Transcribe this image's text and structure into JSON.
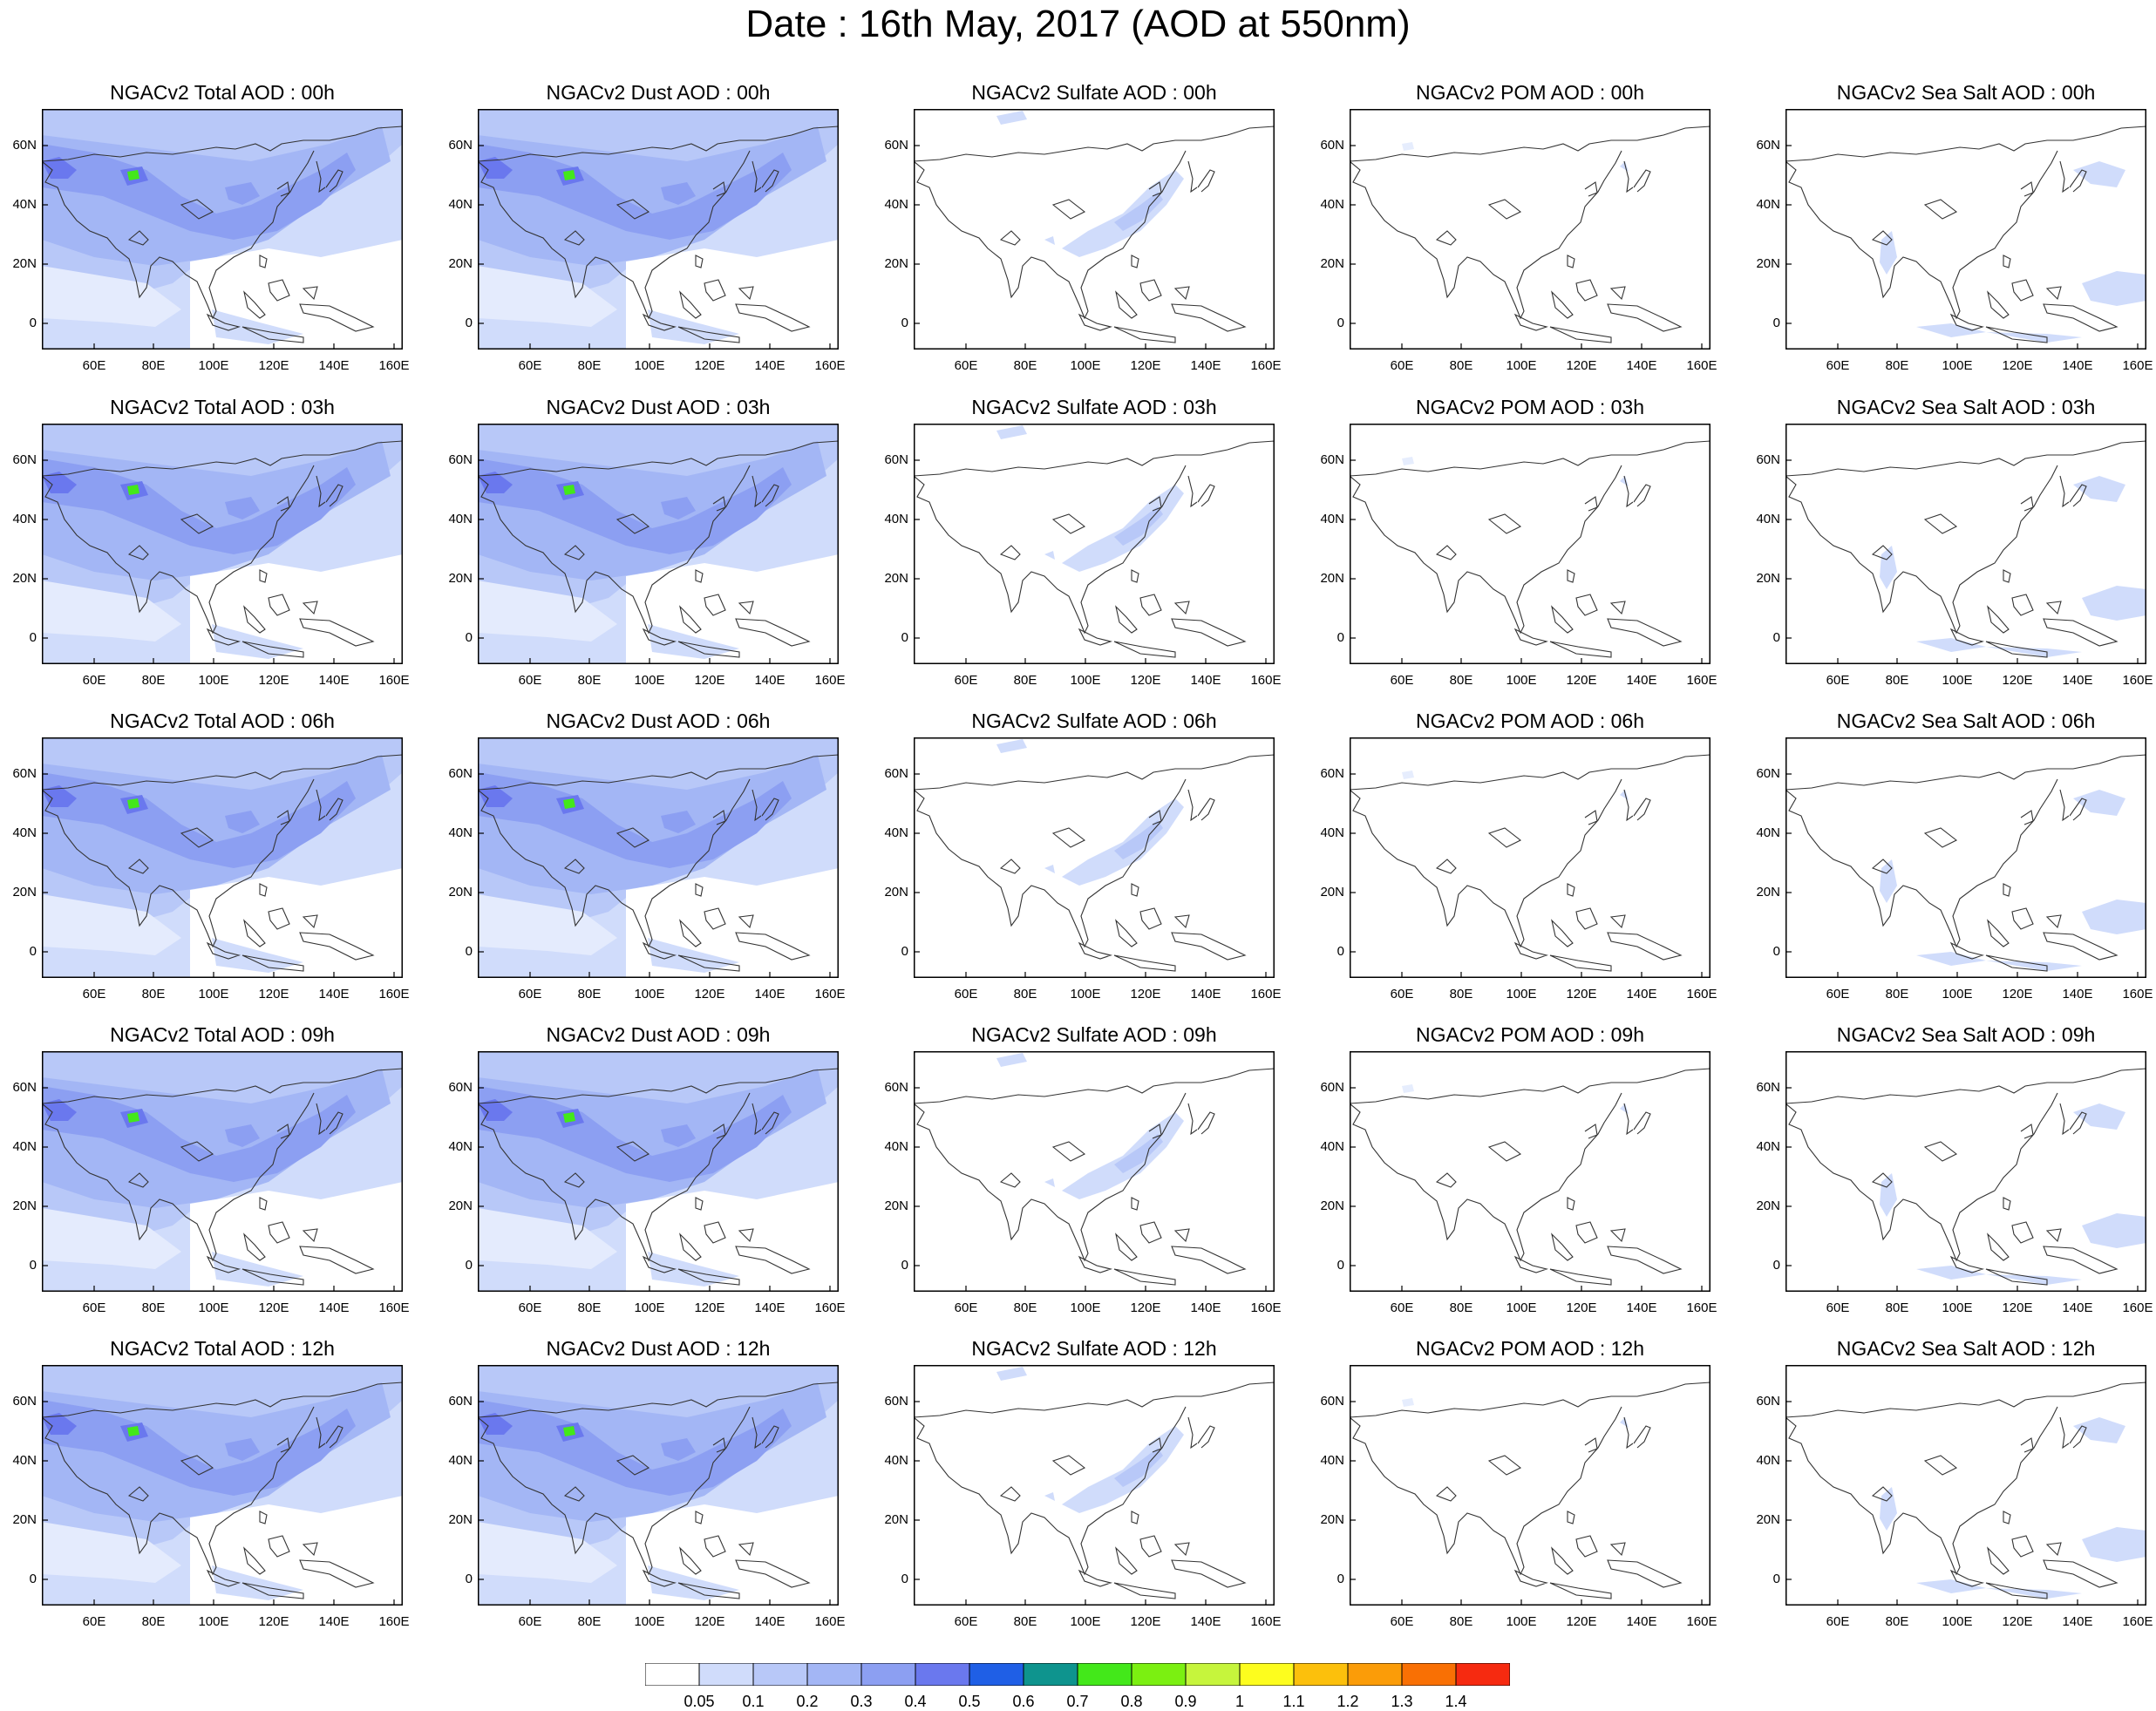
{
  "title": "Date : 16th May, 2017 (AOD at 550nm)",
  "x_ticks": [
    "60E",
    "80E",
    "100E",
    "120E",
    "140E",
    "160E"
  ],
  "y_ticks": [
    "60N",
    "40N",
    "20N",
    "0"
  ],
  "species": [
    {
      "key": "total",
      "fill": "blue-broad"
    },
    {
      "key": "dust",
      "fill": "blue-broad"
    },
    {
      "key": "sulfate",
      "fill": "sparse-east"
    },
    {
      "key": "pom",
      "fill": "nearly-empty"
    },
    {
      "key": "seasalt",
      "fill": "sparse-ocean"
    }
  ],
  "panels": [
    [
      "NGACv2 Total AOD : 00h",
      "NGACv2 Dust AOD : 00h",
      "NGACv2 Sulfate AOD : 00h",
      "NGACv2 POM AOD : 00h",
      "NGACv2 Sea Salt AOD : 00h"
    ],
    [
      "NGACv2 Total AOD : 03h",
      "NGACv2 Dust AOD : 03h",
      "NGACv2 Sulfate AOD : 03h",
      "NGACv2 POM AOD : 03h",
      "NGACv2 Sea Salt AOD : 03h"
    ],
    [
      "NGACv2 Total AOD : 06h",
      "NGACv2 Dust AOD : 06h",
      "NGACv2 Sulfate AOD : 06h",
      "NGACv2 POM AOD : 06h",
      "NGACv2 Sea Salt AOD : 06h"
    ],
    [
      "NGACv2 Total AOD : 09h",
      "NGACv2 Dust AOD : 09h",
      "NGACv2 Sulfate AOD : 09h",
      "NGACv2 POM AOD : 09h",
      "NGACv2 Sea Salt  AOD : 09h"
    ],
    [
      "NGACv2 Total AOD  : 12h",
      "NGACv2 Dust AOD : 12h",
      "NGACv2 Sulfate AOD : 12h",
      "NGACv2 POM  AOD : 12h",
      "NGACv2 Sea Salt  AOD : 12h"
    ]
  ],
  "colorbar": {
    "labels": [
      "0.05",
      "0.1",
      "0.2",
      "0.3",
      "0.4",
      "0.5",
      "0.6",
      "0.7",
      "0.8",
      "0.9",
      "1",
      "1.1",
      "1.2",
      "1.3",
      "1.4"
    ],
    "colors": [
      "#ffffff",
      "#d0dcfb",
      "#b8c8f8",
      "#a3b6f5",
      "#8c9ff2",
      "#6a78ee",
      "#1f5fe6",
      "#0e948e",
      "#43e81a",
      "#7bf011",
      "#c6f53c",
      "#fdfd1e",
      "#fcc00c",
      "#fb9c08",
      "#f97004",
      "#f62a10"
    ]
  },
  "colors": {
    "light": "#d0dcfb",
    "mid": "#b8c8f8",
    "med": "#a3b6f5",
    "dark": "#8c9ff2",
    "deep": "#6a78ee",
    "green": "#43e81a",
    "coast": "#333333"
  }
}
